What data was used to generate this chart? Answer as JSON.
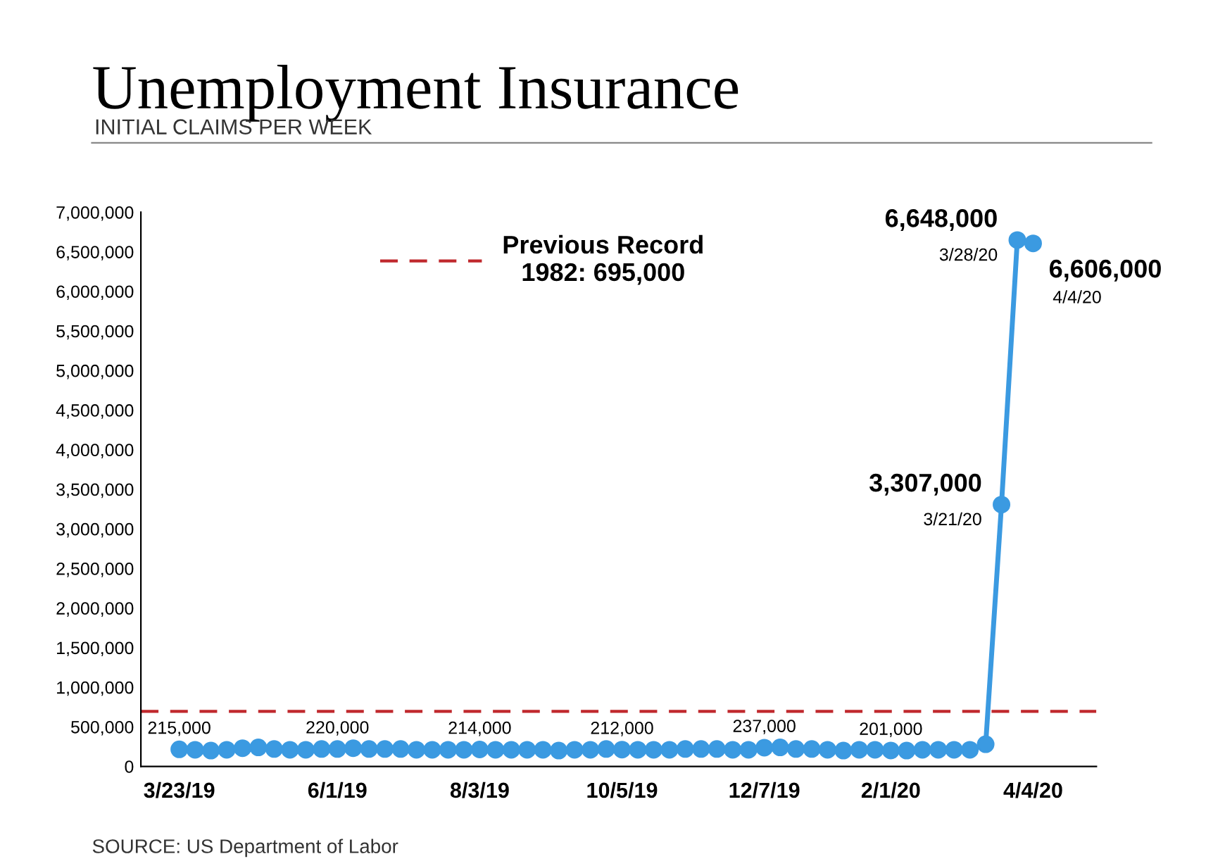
{
  "chart_data": {
    "type": "line",
    "title": "Unemployment Insurance",
    "subtitle": "INITIAL CLAIMS PER WEEK",
    "x": [
      "2019-03-23",
      "2019-03-30",
      "2019-04-06",
      "2019-04-13",
      "2019-04-20",
      "2019-04-27",
      "2019-05-04",
      "2019-05-11",
      "2019-05-18",
      "2019-05-25",
      "2019-06-01",
      "2019-06-08",
      "2019-06-15",
      "2019-06-22",
      "2019-06-29",
      "2019-07-06",
      "2019-07-13",
      "2019-07-20",
      "2019-07-27",
      "2019-08-03",
      "2019-08-10",
      "2019-08-17",
      "2019-08-24",
      "2019-08-31",
      "2019-09-07",
      "2019-09-14",
      "2019-09-21",
      "2019-09-28",
      "2019-10-05",
      "2019-10-12",
      "2019-10-19",
      "2019-10-26",
      "2019-11-02",
      "2019-11-09",
      "2019-11-16",
      "2019-11-23",
      "2019-11-30",
      "2019-12-07",
      "2019-12-14",
      "2019-12-21",
      "2019-12-28",
      "2020-01-04",
      "2020-01-11",
      "2020-01-18",
      "2020-01-25",
      "2020-02-01",
      "2020-02-08",
      "2020-02-15",
      "2020-02-22",
      "2020-02-29",
      "2020-03-07",
      "2020-03-14",
      "2020-03-21",
      "2020-03-28",
      "2020-04-04"
    ],
    "series": [
      {
        "color": "#3b9ae1",
        "values": [
          215000,
          210000,
          200000,
          210000,
          230000,
          240000,
          220000,
          210000,
          210000,
          220000,
          220000,
          230000,
          220000,
          220000,
          220000,
          210000,
          210000,
          210000,
          210000,
          214000,
          210000,
          210000,
          210000,
          210000,
          200000,
          210000,
          210000,
          220000,
          212000,
          210000,
          210000,
          210000,
          220000,
          220000,
          220000,
          210000,
          210000,
          237000,
          240000,
          220000,
          220000,
          210000,
          200000,
          210000,
          210000,
          201000,
          200000,
          210000,
          210000,
          210000,
          210000,
          280000,
          3307000,
          6648000,
          6606000
        ],
        "value_labels": [
          "215,000",
          null,
          null,
          null,
          null,
          null,
          null,
          null,
          null,
          null,
          "220,000",
          null,
          null,
          null,
          null,
          null,
          null,
          null,
          null,
          "214,000",
          null,
          null,
          null,
          null,
          null,
          null,
          null,
          null,
          "212,000",
          null,
          null,
          null,
          null,
          null,
          null,
          null,
          null,
          "237,000",
          null,
          null,
          null,
          null,
          null,
          null,
          null,
          "201,000",
          null,
          null,
          null,
          null,
          null,
          null,
          "3,307,000",
          "6,648,000",
          "6,606,000"
        ]
      }
    ],
    "marker": "circle",
    "xlim": [
      "2019-03-06",
      "2020-05-02"
    ],
    "xticks": [
      {
        "value": "2019-03-23",
        "label": "3/23/19"
      },
      {
        "value": "2019-06-01",
        "label": "6/1/19"
      },
      {
        "value": "2019-08-03",
        "label": "8/3/19"
      },
      {
        "value": "2019-10-05",
        "label": "10/5/19"
      },
      {
        "value": "2019-12-07",
        "label": "12/7/19"
      },
      {
        "value": "2020-02-01",
        "label": "2/1/20"
      },
      {
        "value": "2020-04-04",
        "label": "4/4/20"
      }
    ],
    "ylim": [
      0,
      7000000
    ],
    "yticks": [
      0,
      {
        "value": 500000,
        "label": "500,000"
      },
      {
        "value": 1000000,
        "label": "1,000,000"
      },
      {
        "value": 1500000,
        "label": "1,500,000"
      },
      {
        "value": 2000000,
        "label": "2,000,000"
      },
      {
        "value": 2500000,
        "label": "2,500,000"
      },
      {
        "value": 3000000,
        "label": "3,000,000"
      },
      {
        "value": 3500000,
        "label": "3,500,000"
      },
      {
        "value": 4000000,
        "label": "4,000,000"
      },
      {
        "value": 4500000,
        "label": "4,500,000"
      },
      {
        "value": 5000000,
        "label": "5,000,000"
      },
      {
        "value": 5500000,
        "label": "5,500,000"
      },
      {
        "value": 6000000,
        "label": "6,000,000"
      },
      {
        "value": 6500000,
        "label": "6,500,000"
      },
      {
        "value": 7000000,
        "label": "7,000,000"
      }
    ],
    "ref_lines": [
      {
        "axis": "y",
        "value": 695000,
        "label": "Previous Record\n1982: 695,000",
        "color": "#c0282d",
        "line_style": "dashed"
      }
    ],
    "legend": "top",
    "grid": false,
    "annotations": [
      {
        "text": "3/21/20",
        "x": "2020-03-21",
        "y": 3307000
      },
      {
        "text": "3/28/20",
        "x": "2020-03-28",
        "y": 6648000
      },
      {
        "text": "4/4/20",
        "x": "2020-04-04",
        "y": 6606000
      },
      "SOURCE: US Department of Labor"
    ]
  }
}
